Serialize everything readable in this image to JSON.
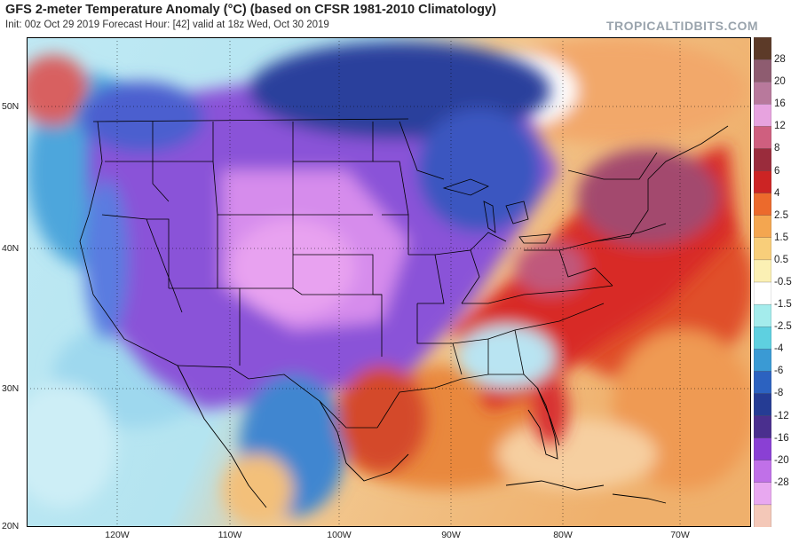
{
  "header": {
    "title": "GFS 2-meter Temperature Anomaly (°C) (based on CFSR 1981-2010 Climatology)",
    "subtitle": "Init: 00z Oct 29 2019   Forecast Hour: [42]   valid at 18z Wed, Oct 30 2019",
    "brand": "TROPICALTIDBITS.COM"
  },
  "map": {
    "lat_labels": [
      "50N",
      "40N",
      "30N",
      "20N"
    ],
    "lon_labels": [
      "120W",
      "110W",
      "100W",
      "90W",
      "80W",
      "70W"
    ],
    "colors": {
      "ocean_warm": "#f0c488",
      "ocean_cool": "#b8e6f2",
      "cold_anomaly": "#a060e0",
      "cold_core": "#e090ee",
      "cool_north": "#4a5bc4",
      "warm_anomaly": "#d02828",
      "warm_core": "#a34a6a",
      "border_line": "#000000"
    }
  },
  "colorbar": {
    "labels": [
      "28",
      "20",
      "16",
      "12",
      "8",
      "6",
      "4",
      "2.5",
      "1.5",
      "0.5",
      "-0.5",
      "-1.5",
      "-2.5",
      "-4",
      "-6",
      "-8",
      "-12",
      "-16",
      "-20",
      "-28"
    ],
    "colors": [
      "#5c3a28",
      "#8e5c70",
      "#b8799c",
      "#e7a3df",
      "#cf5f7f",
      "#9a2c3c",
      "#cc2424",
      "#ec6a2c",
      "#f4a650",
      "#f8ce7a",
      "#fbf0b4",
      "#ffffff",
      "#a4ecec",
      "#5ed0e0",
      "#3a9ad4",
      "#2c62c0",
      "#253c94",
      "#4a2f8e",
      "#8a40d4",
      "#c070e8",
      "#e8a8f0",
      "#f4c8b8"
    ]
  }
}
